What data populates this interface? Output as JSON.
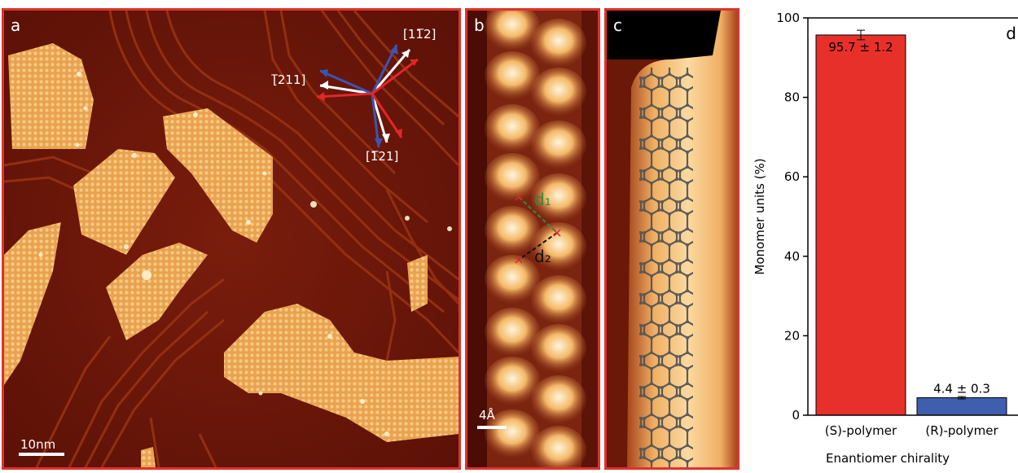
{
  "panel_a": {
    "label": "a",
    "scale": "10nm",
    "directions": [
      "[11̅2]",
      "[̅211]",
      "[1̅21]"
    ]
  },
  "panel_b": {
    "label": "b",
    "scale": "4Å",
    "d1": "d₁",
    "d2": "d₂"
  },
  "panel_c": {
    "label": "c"
  },
  "colors": {
    "frame": "#e0322c",
    "stm_dark": "#6b1509",
    "stm_bright": "#f3b765",
    "bar_s": "#e8302a",
    "bar_r": "#3e5fae"
  },
  "chart_data": {
    "type": "bar",
    "panel_label": "d",
    "categories": [
      "(S)-polymer",
      "(R)-polymer"
    ],
    "values": [
      95.7,
      4.4
    ],
    "errors": [
      1.2,
      0.3
    ],
    "value_labels": [
      "95.7 ± 1.2",
      "4.4 ± 0.3"
    ],
    "xlabel": "Enantiomer chirality",
    "ylabel": "Monomer units (%)",
    "ylim": [
      0,
      100
    ],
    "yticks": [
      0,
      20,
      40,
      60,
      80,
      100
    ],
    "colors": [
      "#e8302a",
      "#3e5fae"
    ]
  }
}
